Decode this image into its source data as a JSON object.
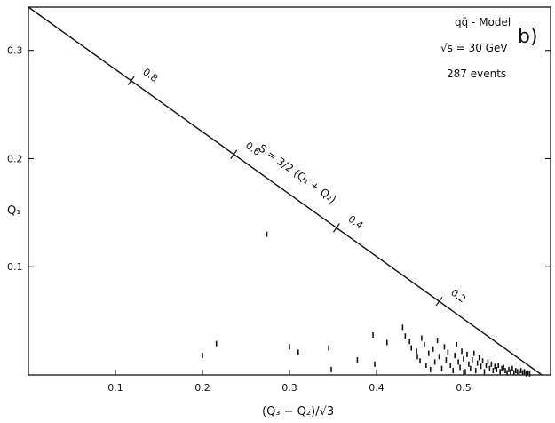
{
  "chart_data": {
    "type": "scatter",
    "panel_label": "b)",
    "xlabel": "(Q₃ − Q₂)/√3",
    "ylabel": "Q₁",
    "xlim": [
      0,
      0.6
    ],
    "ylim": [
      0,
      0.34
    ],
    "x_ticks": [
      0.1,
      0.2,
      0.3,
      0.4,
      0.5
    ],
    "y_ticks": [
      0.1,
      0.2,
      0.3
    ],
    "x_tick_labels": [
      "0.1",
      "0.2",
      "0.3",
      "0.4",
      "0.5"
    ],
    "y_tick_labels": [
      "0.1",
      "0.2",
      "0.3"
    ],
    "model_text": "qq̄ - Model",
    "energy_text": "√s = 30 GeV",
    "events_text": "287 events",
    "boundary_label": "S = 3/2 (Q₁ + Q₂)",
    "boundary_ticks": [
      {
        "label": "0.8"
      },
      {
        "label": "0.6"
      },
      {
        "label": "0.4"
      },
      {
        "label": "0.2"
      }
    ],
    "boundary_line": [
      [
        0,
        0.34
      ],
      [
        0.59,
        0
      ]
    ],
    "points": [
      [
        0.2,
        0.018
      ],
      [
        0.216,
        0.029
      ],
      [
        0.274,
        0.13
      ],
      [
        0.3,
        0.026
      ],
      [
        0.31,
        0.021
      ],
      [
        0.345,
        0.025
      ],
      [
        0.348,
        0.005
      ],
      [
        0.378,
        0.014
      ],
      [
        0.396,
        0.037
      ],
      [
        0.398,
        0.01
      ],
      [
        0.412,
        0.03
      ],
      [
        0.43,
        0.044
      ],
      [
        0.433,
        0.036
      ],
      [
        0.438,
        0.031
      ],
      [
        0.44,
        0.025
      ],
      [
        0.446,
        0.022
      ],
      [
        0.447,
        0.017
      ],
      [
        0.45,
        0.013
      ],
      [
        0.452,
        0.034
      ],
      [
        0.455,
        0.028
      ],
      [
        0.457,
        0.009
      ],
      [
        0.46,
        0.02
      ],
      [
        0.462,
        0.005
      ],
      [
        0.465,
        0.024
      ],
      [
        0.467,
        0.012
      ],
      [
        0.47,
        0.032
      ],
      [
        0.472,
        0.017
      ],
      [
        0.475,
        0.006
      ],
      [
        0.478,
        0.026
      ],
      [
        0.48,
        0.014
      ],
      [
        0.482,
        0.021
      ],
      [
        0.485,
        0.009
      ],
      [
        0.488,
        0.004
      ],
      [
        0.49,
        0.018
      ],
      [
        0.492,
        0.028
      ],
      [
        0.494,
        0.012
      ],
      [
        0.496,
        0.007
      ],
      [
        0.498,
        0.022
      ],
      [
        0.5,
        0.015
      ],
      [
        0.502,
        0.003
      ],
      [
        0.504,
        0.019
      ],
      [
        0.506,
        0.01
      ],
      [
        0.508,
        0.006
      ],
      [
        0.51,
        0.014
      ],
      [
        0.512,
        0.02
      ],
      [
        0.514,
        0.004
      ],
      [
        0.516,
        0.011
      ],
      [
        0.518,
        0.016
      ],
      [
        0.52,
        0.008
      ],
      [
        0.522,
        0.013
      ],
      [
        0.524,
        0.003
      ],
      [
        0.526,
        0.009
      ],
      [
        0.528,
        0.012
      ],
      [
        0.53,
        0.006
      ],
      [
        0.532,
        0.01
      ],
      [
        0.534,
        0.004
      ],
      [
        0.536,
        0.008
      ],
      [
        0.538,
        0.005
      ],
      [
        0.54,
        0.009
      ],
      [
        0.542,
        0.003
      ],
      [
        0.544,
        0.006
      ],
      [
        0.546,
        0.007
      ],
      [
        0.548,
        0.004
      ],
      [
        0.55,
        0.002
      ],
      [
        0.552,
        0.005
      ],
      [
        0.554,
        0.003
      ],
      [
        0.556,
        0.006
      ],
      [
        0.558,
        0.002
      ],
      [
        0.56,
        0.004
      ],
      [
        0.562,
        0.003
      ],
      [
        0.564,
        0.002
      ],
      [
        0.566,
        0.004
      ],
      [
        0.568,
        0.002
      ],
      [
        0.57,
        0.003
      ],
      [
        0.572,
        0.001
      ],
      [
        0.574,
        0.002
      ],
      [
        0.576,
        0.001
      ]
    ]
  }
}
